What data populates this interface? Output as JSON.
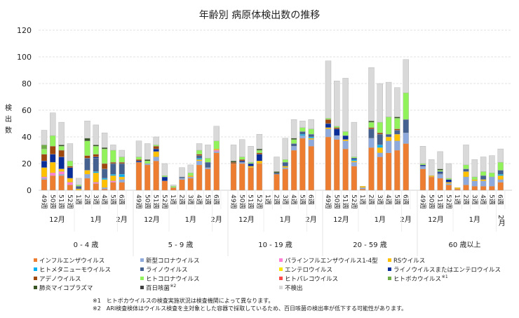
{
  "chart_data": {
    "type": "bar",
    "stacked": true,
    "title": "年齢別 病原体検出数の推移",
    "ylabel": "検出数",
    "ylim": [
      0,
      120
    ],
    "yticks": [
      0,
      20,
      40,
      60,
      80,
      100,
      120
    ],
    "grid": true,
    "legend_position": "bottom",
    "weeks": [
      "49週",
      "50週",
      "51週",
      "52週",
      "1週",
      "2週",
      "3週",
      "4週",
      "5週",
      "6週"
    ],
    "months": [
      {
        "label": "12月",
        "span": 4
      },
      {
        "label": "1月",
        "span": 5
      },
      {
        "label": "2月",
        "span": 1
      }
    ],
    "age_groups": [
      "0 - 4 歳",
      "5 - 9 歳",
      "10 - 19 歳",
      "20 - 59 歳",
      "60 歳以上"
    ],
    "series": [
      {
        "name": "インフルエンザウイルス",
        "color": "#ED7D31",
        "values": [
          8,
          11,
          11,
          4,
          0,
          9,
          5,
          1,
          6,
          6,
          21,
          19,
          22,
          7,
          2,
          8,
          9,
          19,
          16,
          28,
          20,
          20,
          17,
          20,
          0,
          12,
          16,
          30,
          39,
          33,
          40,
          38,
          31,
          18,
          1,
          32,
          25,
          28,
          30,
          35,
          16,
          10,
          9,
          4,
          1,
          4,
          3,
          3,
          3,
          6
        ]
      },
      {
        "name": "新型コロナウイルス",
        "color": "#8EA9DB",
        "values": [
          1,
          0,
          1,
          0,
          0,
          3,
          0,
          1,
          0,
          2,
          0,
          1,
          3,
          0,
          0,
          1,
          1,
          3,
          1,
          1,
          0,
          1,
          0,
          0,
          0,
          0,
          1,
          3,
          2,
          5,
          6,
          3,
          6,
          3,
          1,
          7,
          3,
          9,
          7,
          8,
          2,
          0,
          3,
          1,
          0,
          6,
          4,
          4,
          7,
          2
        ]
      },
      {
        "name": "パラインフルエンザウイルス1-4型",
        "color": "#FF7FD4",
        "values": [
          1,
          2,
          2,
          2,
          0,
          0,
          1,
          0,
          1,
          0,
          0,
          0,
          0,
          0,
          0,
          0,
          0,
          0,
          0,
          1,
          0,
          0,
          0,
          0,
          0,
          0,
          0,
          0,
          0,
          0,
          0,
          0,
          0,
          0,
          0,
          0,
          0,
          0,
          0,
          0,
          0,
          0,
          0,
          0,
          0,
          0,
          0,
          0,
          0,
          0
        ]
      },
      {
        "name": "RSウイルス",
        "color": "#FFC000",
        "values": [
          7,
          8,
          2,
          3,
          1,
          3,
          7,
          6,
          4,
          2,
          0,
          0,
          4,
          0,
          0,
          0,
          1,
          1,
          0,
          1,
          0,
          0,
          1,
          2,
          0,
          0,
          1,
          0,
          0,
          1,
          1,
          0,
          1,
          1,
          1,
          0,
          4,
          3,
          5,
          0,
          0,
          1,
          0,
          1,
          1,
          4,
          1,
          1,
          0,
          3
        ]
      },
      {
        "name": "ヒトメタニューモウイルス",
        "color": "#00B0F0",
        "values": [
          0,
          0,
          0,
          0,
          0,
          0,
          1,
          1,
          1,
          2,
          0,
          0,
          0,
          0,
          0,
          0,
          0,
          1,
          0,
          0,
          0,
          0,
          0,
          0,
          0,
          0,
          0,
          0,
          1,
          1,
          0,
          0,
          0,
          1,
          0,
          0,
          2,
          0,
          0,
          0,
          0,
          0,
          0,
          0,
          0,
          0,
          0,
          0,
          0,
          1
        ]
      },
      {
        "name": "ライノウイルス",
        "color": "#44618F",
        "values": [
          0,
          0,
          0,
          0,
          2,
          9,
          10,
          7,
          8,
          8,
          0,
          0,
          0,
          0,
          0,
          1,
          0,
          2,
          4,
          0,
          0,
          0,
          0,
          0,
          0,
          1,
          3,
          2,
          2,
          2,
          0,
          0,
          0,
          0,
          0,
          7,
          8,
          2,
          3,
          10,
          0,
          0,
          1,
          0,
          0,
          2,
          0,
          3,
          0,
          3
        ]
      },
      {
        "name": "エンテロウイルス",
        "color": "#FFE600",
        "values": [
          0,
          0,
          0,
          0,
          0,
          0,
          0,
          0,
          0,
          0,
          0,
          0,
          0,
          0,
          0,
          0,
          0,
          0,
          0,
          0,
          0,
          0,
          0,
          0,
          0,
          0,
          0,
          0,
          0,
          0,
          0,
          0,
          0,
          0,
          0,
          0,
          0,
          0,
          0,
          0,
          0,
          0,
          0,
          0,
          0,
          0,
          0,
          0,
          0,
          0
        ]
      },
      {
        "name": "ライノウイルスまたはエンテロウイルス",
        "color": "#0A2E99",
        "values": [
          5,
          6,
          9,
          8,
          0,
          0,
          1,
          0,
          0,
          0,
          1,
          0,
          2,
          3,
          0,
          0,
          0,
          0,
          0,
          0,
          0,
          1,
          2,
          5,
          0,
          0,
          0,
          0,
          0,
          0,
          3,
          5,
          3,
          1,
          0,
          0,
          0,
          0,
          0,
          0,
          1,
          0,
          1,
          2,
          0,
          0,
          0,
          0,
          0,
          0
        ]
      },
      {
        "name": "アデノウイルス",
        "color": "#9E480E",
        "values": [
          5,
          6,
          5,
          1,
          0,
          2,
          2,
          4,
          1,
          1,
          1,
          0,
          2,
          0,
          0,
          0,
          0,
          1,
          0,
          0,
          1,
          1,
          0,
          1,
          0,
          0,
          0,
          0,
          0,
          0,
          3,
          1,
          0,
          0,
          0,
          1,
          1,
          0,
          1,
          0,
          0,
          0,
          0,
          0,
          0,
          0,
          0,
          0,
          0,
          0
        ]
      },
      {
        "name": "ヒトコロナウイルス",
        "color": "#92F25C",
        "values": [
          4,
          8,
          3,
          4,
          1,
          11,
          6,
          11,
          9,
          4,
          2,
          2,
          1,
          1,
          1,
          0,
          2,
          3,
          3,
          6,
          0,
          2,
          1,
          2,
          0,
          0,
          2,
          3,
          3,
          4,
          1,
          1,
          3,
          1,
          0,
          4,
          8,
          13,
          8,
          20,
          1,
          0,
          1,
          1,
          0,
          3,
          2,
          3,
          3,
          6
        ]
      },
      {
        "name": "ヒトパレコウイルス",
        "color": "#FF4B4B",
        "values": [
          0,
          0,
          0,
          0,
          0,
          0,
          0,
          0,
          0,
          0,
          0,
          0,
          0,
          0,
          0,
          0,
          0,
          0,
          0,
          0,
          0,
          0,
          0,
          0,
          0,
          0,
          0,
          0,
          0,
          0,
          0,
          0,
          0,
          0,
          0,
          0,
          0,
          0,
          0,
          0,
          0,
          0,
          0,
          0,
          0,
          0,
          0,
          0,
          0,
          0
        ]
      },
      {
        "name": "ヒトボカウイルス",
        "note": "※1",
        "color": "#70AD47",
        "values": [
          3,
          0,
          0,
          0,
          0,
          0,
          0,
          0,
          0,
          0,
          0,
          0,
          0,
          0,
          0,
          0,
          0,
          0,
          0,
          0,
          0,
          0,
          0,
          0,
          0,
          0,
          0,
          0,
          0,
          0,
          0,
          0,
          0,
          0,
          0,
          0,
          0,
          0,
          0,
          0,
          0,
          0,
          0,
          0,
          0,
          0,
          0,
          0,
          0,
          0
        ]
      },
      {
        "name": "肺炎マイコプラズマ",
        "color": "#375623",
        "values": [
          0,
          0,
          1,
          0,
          0,
          2,
          1,
          1,
          0,
          0,
          0,
          1,
          0,
          0,
          0,
          0,
          0,
          0,
          0,
          0,
          1,
          0,
          0,
          1,
          0,
          1,
          0,
          1,
          0,
          0,
          0,
          0,
          0,
          0,
          0,
          1,
          0,
          0,
          1,
          0,
          0,
          0,
          1,
          0,
          0,
          0,
          0,
          0,
          0,
          0
        ]
      },
      {
        "name": "百日咳菌",
        "note": "※2",
        "color": "#404040",
        "values": [
          0,
          0,
          0,
          0,
          0,
          0,
          0,
          0,
          0,
          0,
          0,
          0,
          0,
          0,
          0,
          0,
          0,
          0,
          0,
          0,
          0,
          0,
          0,
          0,
          0,
          0,
          0,
          0,
          0,
          0,
          0,
          0,
          0,
          0,
          0,
          0,
          0,
          0,
          0,
          0,
          0,
          0,
          0,
          0,
          0,
          0,
          0,
          0,
          0,
          0
        ]
      },
      {
        "name": "不検出",
        "color": "#D9D9D9",
        "values": [
          11,
          17,
          17,
          13,
          5,
          13,
          15,
          11,
          4,
          5,
          12,
          12,
          6,
          9,
          1,
          7,
          6,
          5,
          10,
          11,
          12,
          13,
          12,
          11,
          0,
          11,
          16,
          14,
          5,
          7,
          43,
          34,
          40,
          26,
          0,
          40,
          29,
          26,
          22,
          25,
          13,
          12,
          13,
          11,
          0,
          15,
          13,
          11,
          13,
          10
        ]
      }
    ],
    "footnotes": [
      "※1　ヒトボカウイルスの検査実施状況は検査機関によって異なります。",
      "※2　ARI検査検体はウイルス検査を主対象とした容器で採取しているため、百日咳菌の検出率が低下する可能性があります。"
    ]
  }
}
